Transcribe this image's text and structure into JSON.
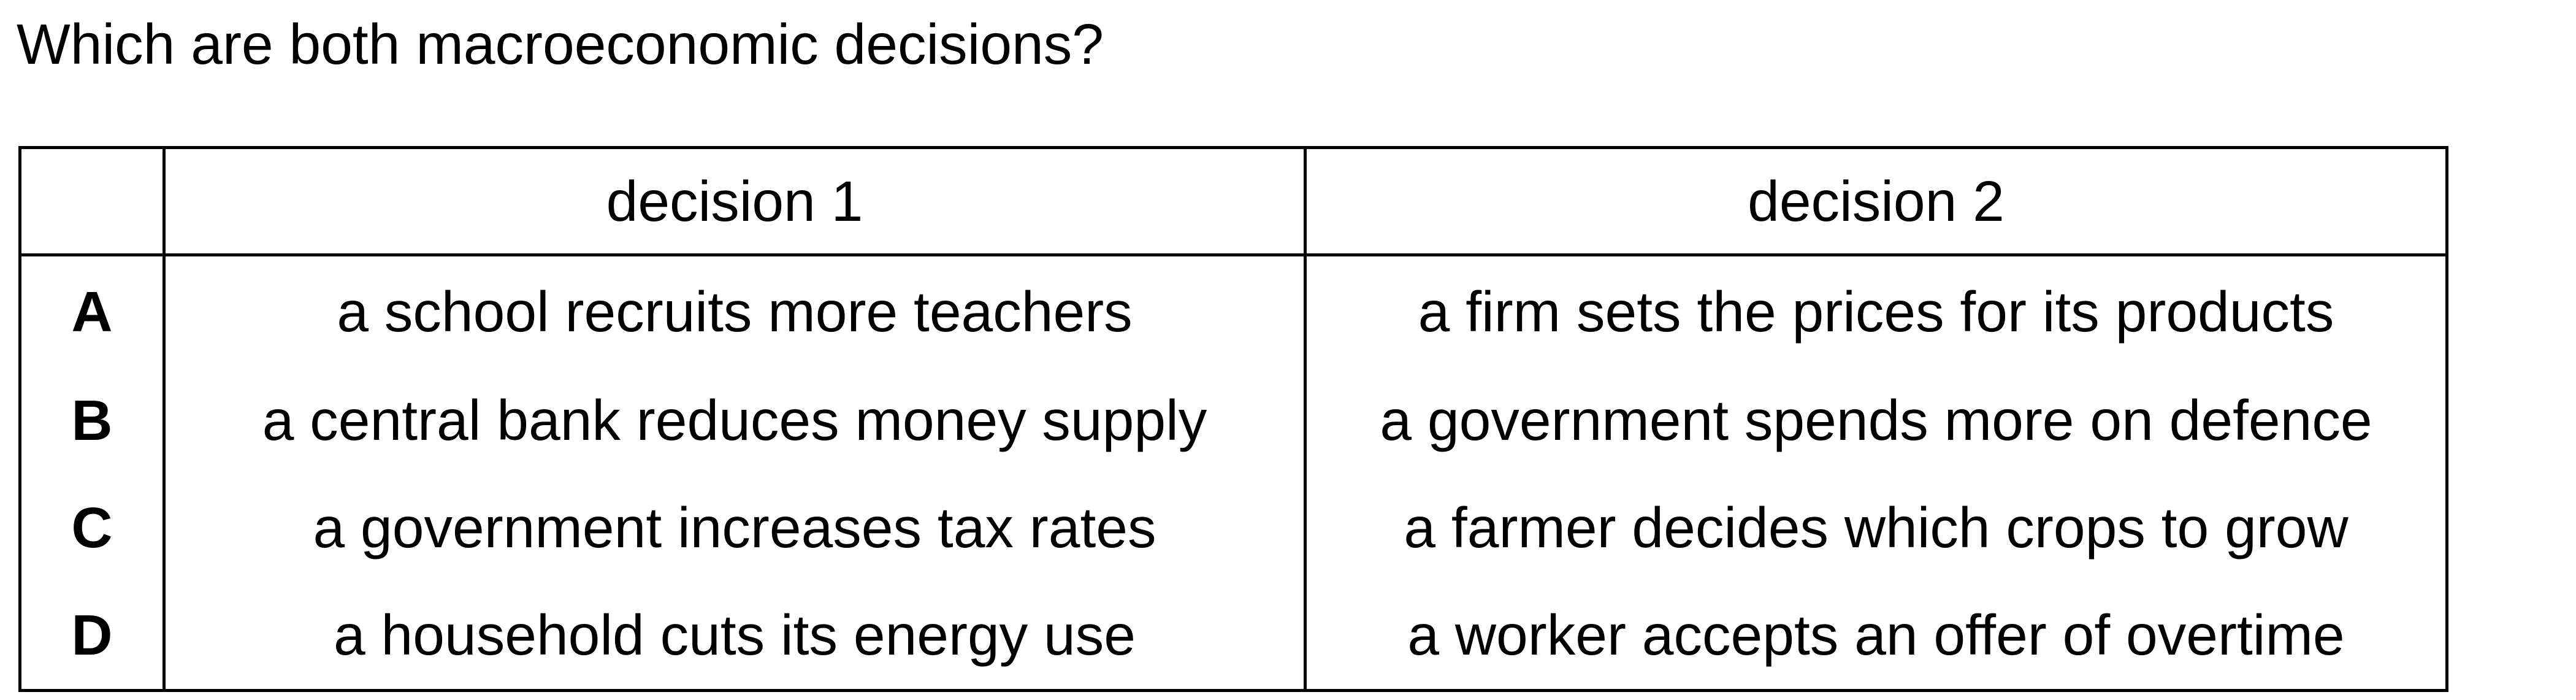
{
  "question": "Which are both macroeconomic decisions?",
  "table": {
    "headers": [
      "",
      "decision 1",
      "decision 2"
    ],
    "rows": [
      {
        "letter": "A",
        "decision_1": "a school recruits more teachers",
        "decision_2": "a firm sets the prices for its products"
      },
      {
        "letter": "B",
        "decision_1": "a central bank reduces money supply",
        "decision_2": "a government spends more on defence"
      },
      {
        "letter": "C",
        "decision_1": "a government increases tax rates",
        "decision_2": "a farmer decides which crops to grow"
      },
      {
        "letter": "D",
        "decision_1": "a household cuts its energy use",
        "decision_2": "a worker accepts an offer of overtime"
      }
    ]
  }
}
